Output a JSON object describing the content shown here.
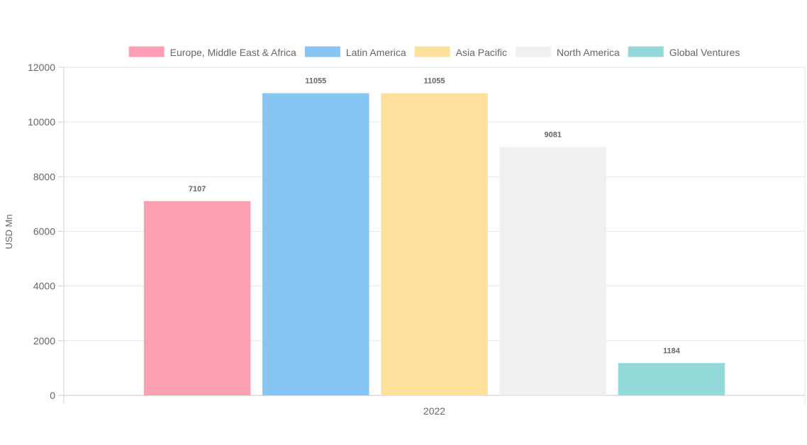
{
  "chart_data": {
    "type": "bar",
    "categories": [
      "2022"
    ],
    "series": [
      {
        "name": "Europe, Middle East & Africa",
        "values": [
          7107
        ],
        "color": "#ff9fb3"
      },
      {
        "name": "Latin America",
        "values": [
          11055
        ],
        "color": "#87c6f2"
      },
      {
        "name": "Asia Pacific",
        "values": [
          11055
        ],
        "color": "#fde09c"
      },
      {
        "name": "North America",
        "values": [
          9081
        ],
        "color": "#eff0f2"
      },
      {
        "name": "Global Ventures",
        "values": [
          1184
        ],
        "color": "#94d9da"
      }
    ],
    "title": "",
    "xlabel": "",
    "ylabel": "USD Mn",
    "ylim": [
      0,
      12000
    ],
    "yticks": [
      0,
      2000,
      4000,
      6000,
      8000,
      10000,
      12000
    ],
    "grid": true,
    "legend_position": "top",
    "data_labels": true
  }
}
